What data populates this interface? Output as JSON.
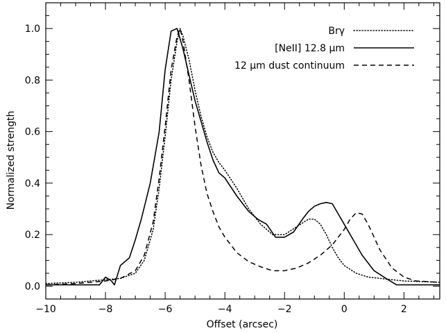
{
  "chart_data": {
    "type": "line",
    "xlabel": "Offset (arcsec)",
    "ylabel": "Normalized strength",
    "xlim": [
      -10,
      3.2
    ],
    "ylim": [
      -0.05,
      1.1
    ],
    "xticks": [
      -10,
      -8,
      -6,
      -4,
      -2,
      0,
      2
    ],
    "xtick_labels": [
      "−10",
      "−8",
      "−6",
      "−4",
      "−2",
      "0",
      "2"
    ],
    "yticks": [
      0.0,
      0.2,
      0.4,
      0.6,
      0.8,
      1.0
    ],
    "ytick_labels": [
      "0.0",
      "0.2",
      "0.4",
      "0.6",
      "0.8",
      "1.0"
    ],
    "legend_position": "top-right",
    "grid": false,
    "series": [
      {
        "name": "Brγ",
        "style": "dotted",
        "color": "#000000",
        "x": [
          -10,
          -9,
          -8.5,
          -8,
          -7.5,
          -7,
          -6.7,
          -6.4,
          -6.2,
          -6.0,
          -5.8,
          -5.6,
          -5.5,
          -5.4,
          -5.2,
          -5.0,
          -4.8,
          -4.6,
          -4.4,
          -4.2,
          -4.0,
          -3.6,
          -3.2,
          -2.8,
          -2.4,
          -2.0,
          -1.6,
          -1.2,
          -1.0,
          -0.8,
          -0.6,
          -0.4,
          -0.2,
          0.0,
          0.4,
          0.8,
          1.2,
          1.6,
          2.0,
          3.2
        ],
        "y": [
          0.01,
          0.015,
          0.02,
          0.025,
          0.03,
          0.05,
          0.1,
          0.22,
          0.38,
          0.58,
          0.8,
          0.95,
          1.0,
          0.97,
          0.88,
          0.76,
          0.66,
          0.58,
          0.52,
          0.48,
          0.45,
          0.38,
          0.3,
          0.24,
          0.2,
          0.2,
          0.23,
          0.26,
          0.26,
          0.24,
          0.2,
          0.15,
          0.11,
          0.08,
          0.05,
          0.035,
          0.03,
          0.025,
          0.02,
          0.015
        ]
      },
      {
        "name": "[NeII] 12.8 μm",
        "style": "solid",
        "color": "#000000",
        "x": [
          -10,
          -8.5,
          -8.2,
          -8.0,
          -7.8,
          -7.7,
          -7.5,
          -7.2,
          -7.0,
          -6.8,
          -6.5,
          -6.2,
          -6.0,
          -5.8,
          -5.6,
          -5.4,
          -5.2,
          -5.0,
          -4.8,
          -4.6,
          -4.4,
          -4.2,
          -4.0,
          -3.6,
          -3.2,
          -2.9,
          -2.6,
          -2.3,
          -2.0,
          -1.7,
          -1.4,
          -1.2,
          -1.0,
          -0.8,
          -0.6,
          -0.4,
          -0.2,
          0.0,
          0.3,
          0.6,
          1.0,
          1.4,
          1.75,
          2.0,
          3.2
        ],
        "y": [
          0.005,
          0.005,
          0.005,
          0.035,
          0.02,
          0.005,
          0.08,
          0.11,
          0.18,
          0.26,
          0.4,
          0.6,
          0.84,
          0.99,
          1.0,
          0.92,
          0.82,
          0.72,
          0.64,
          0.56,
          0.49,
          0.44,
          0.42,
          0.35,
          0.29,
          0.26,
          0.24,
          0.19,
          0.19,
          0.21,
          0.26,
          0.29,
          0.31,
          0.32,
          0.325,
          0.32,
          0.28,
          0.24,
          0.18,
          0.12,
          0.06,
          0.03,
          0.005,
          0.005,
          0.005
        ]
      },
      {
        "name": "12 μm dust continuum",
        "style": "dashed",
        "color": "#000000",
        "x": [
          -10,
          -9,
          -8.5,
          -8.0,
          -7.5,
          -7.0,
          -6.7,
          -6.4,
          -6.2,
          -6.0,
          -5.8,
          -5.6,
          -5.5,
          -5.4,
          -5.2,
          -5.0,
          -4.8,
          -4.6,
          -4.4,
          -4.2,
          -4.0,
          -3.6,
          -3.2,
          -2.8,
          -2.4,
          -2.0,
          -1.6,
          -1.2,
          -0.8,
          -0.4,
          0.0,
          0.2,
          0.4,
          0.6,
          0.8,
          1.2,
          1.6,
          2.0,
          2.4,
          3.2
        ],
        "y": [
          0.005,
          0.01,
          0.015,
          0.02,
          0.03,
          0.06,
          0.12,
          0.25,
          0.42,
          0.62,
          0.84,
          0.97,
          1.0,
          0.95,
          0.8,
          0.62,
          0.47,
          0.36,
          0.29,
          0.23,
          0.19,
          0.13,
          0.095,
          0.075,
          0.06,
          0.06,
          0.07,
          0.09,
          0.12,
          0.16,
          0.22,
          0.26,
          0.285,
          0.28,
          0.24,
          0.14,
          0.07,
          0.035,
          0.02,
          0.015
        ]
      }
    ]
  }
}
